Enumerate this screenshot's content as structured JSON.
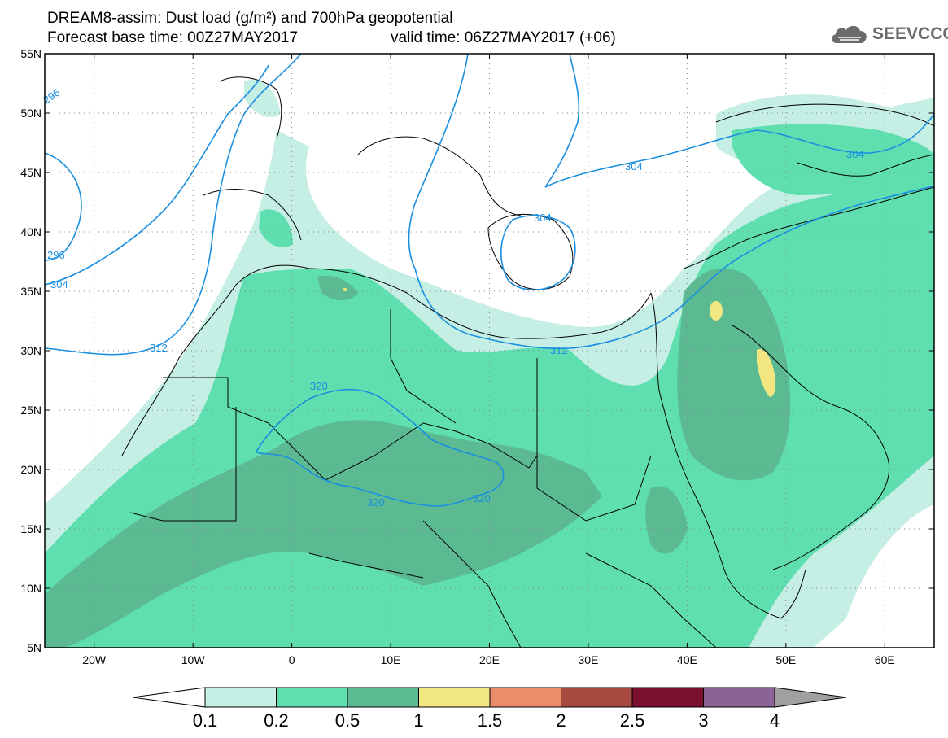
{
  "title": {
    "line1": "DREAM8-assim: Dust load (g/m²) and 700hPa geopotential",
    "line2a": "Forecast base time: 00Z27MAY2017",
    "line2b": "valid time: 06Z27MAY2017 (+06)"
  },
  "logo": {
    "text": "SEEVCCC",
    "icon": "cloud-icon"
  },
  "map": {
    "lat_labels": [
      "55N",
      "50N",
      "45N",
      "40N",
      "35N",
      "30N",
      "25N",
      "20N",
      "15N",
      "10N",
      "5N"
    ],
    "lon_labels": [
      "20W",
      "10W",
      "0",
      "10E",
      "20E",
      "30E",
      "40E",
      "50E",
      "60E"
    ],
    "extent": {
      "lon_min": -25,
      "lon_max": 65,
      "lat_min": 5,
      "lat_max": 55
    },
    "contour_color": "#1a8fe0",
    "contour_labels": [
      "296",
      "296",
      "304",
      "312",
      "320",
      "320",
      "320",
      "312",
      "304",
      "304",
      "304"
    ]
  },
  "colorbar": {
    "levels": [
      "0.1",
      "0.2",
      "0.5",
      "1",
      "1.5",
      "2",
      "2.5",
      "3",
      "4"
    ],
    "colors": [
      "#c5eee4",
      "#5fdfb0",
      "#5cba93",
      "#f2e680",
      "#e98d6a",
      "#a8493f",
      "#7a0f2e",
      "#8b6496"
    ],
    "under_color": "#ffffff",
    "over_color": "#a0a0a0"
  }
}
